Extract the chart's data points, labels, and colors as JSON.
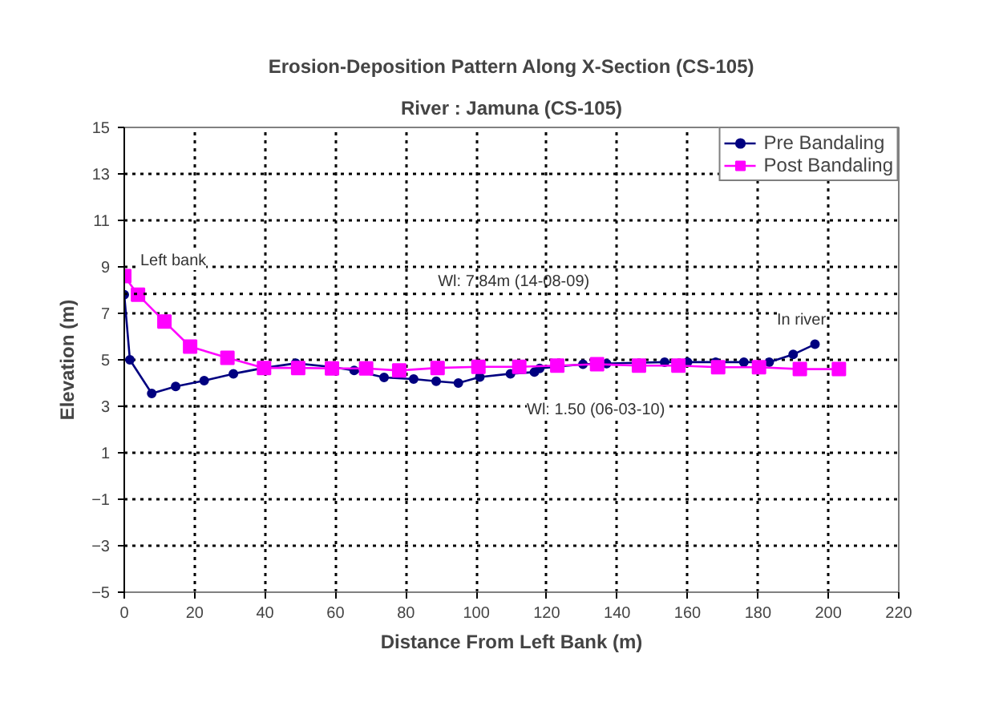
{
  "chart_data": {
    "type": "line",
    "title": "Erosion-Deposition Pattern Along X-Section (CS-105)",
    "subtitle": "River : Jamuna (CS-105)",
    "xlabel": "Distance From Left Bank (m)",
    "ylabel": "Elevation (m)",
    "series": [
      {
        "name": "Pre Bandaling",
        "color": "#000080",
        "marker": "circle",
        "x": [
          0,
          1.6,
          7.8,
          14.6,
          22.7,
          31,
          39.7,
          48.7,
          58.5,
          65.3,
          73.8,
          82.2,
          88.6,
          94.9,
          101,
          109.7,
          116.5,
          118,
          130.3,
          137,
          153.5,
          160,
          168,
          176,
          183.2,
          190,
          196.2
        ],
        "values": [
          7.8,
          5.0,
          3.55,
          3.85,
          4.1,
          4.4,
          4.65,
          4.85,
          4.7,
          4.54,
          4.24,
          4.17,
          4.08,
          4.0,
          4.26,
          4.4,
          4.47,
          4.63,
          4.81,
          4.84,
          4.9,
          4.9,
          4.9,
          4.9,
          4.9,
          5.23,
          5.67
        ]
      },
      {
        "name": "Post Bandaling",
        "color": "#ff00ff",
        "marker": "square",
        "x": [
          0,
          3.9,
          11.4,
          18.7,
          29.3,
          39.7,
          49.4,
          59,
          68.7,
          78.1,
          89,
          100.6,
          112.2,
          123,
          134.3,
          146.2,
          157.4,
          168.7,
          180.3,
          191.9,
          203
        ],
        "values": [
          8.6,
          7.8,
          6.65,
          5.57,
          5.09,
          4.65,
          4.65,
          4.63,
          4.63,
          4.54,
          4.65,
          4.7,
          4.7,
          4.75,
          4.81,
          4.75,
          4.75,
          4.68,
          4.68,
          4.6,
          4.6
        ]
      }
    ],
    "xlim": [
      0,
      220
    ],
    "xticks": [
      0,
      20,
      40,
      60,
      80,
      100,
      120,
      140,
      160,
      180,
      200,
      220
    ],
    "ylim": [
      -5,
      15
    ],
    "yticks": [
      -5,
      -3,
      -1,
      1,
      3,
      5,
      7,
      9,
      11,
      13,
      15
    ],
    "ref_lines": [
      {
        "axis": "y",
        "value": 7.84,
        "label": "Wl: 7.84m (14-08-09)",
        "color": "#000000",
        "line_style": "dotted"
      }
    ],
    "annotations": [
      "Left bank",
      "Wl: 1.50 (06-03-10)",
      "In river"
    ],
    "grid": true,
    "line_style": "solid",
    "legend": "top right"
  }
}
